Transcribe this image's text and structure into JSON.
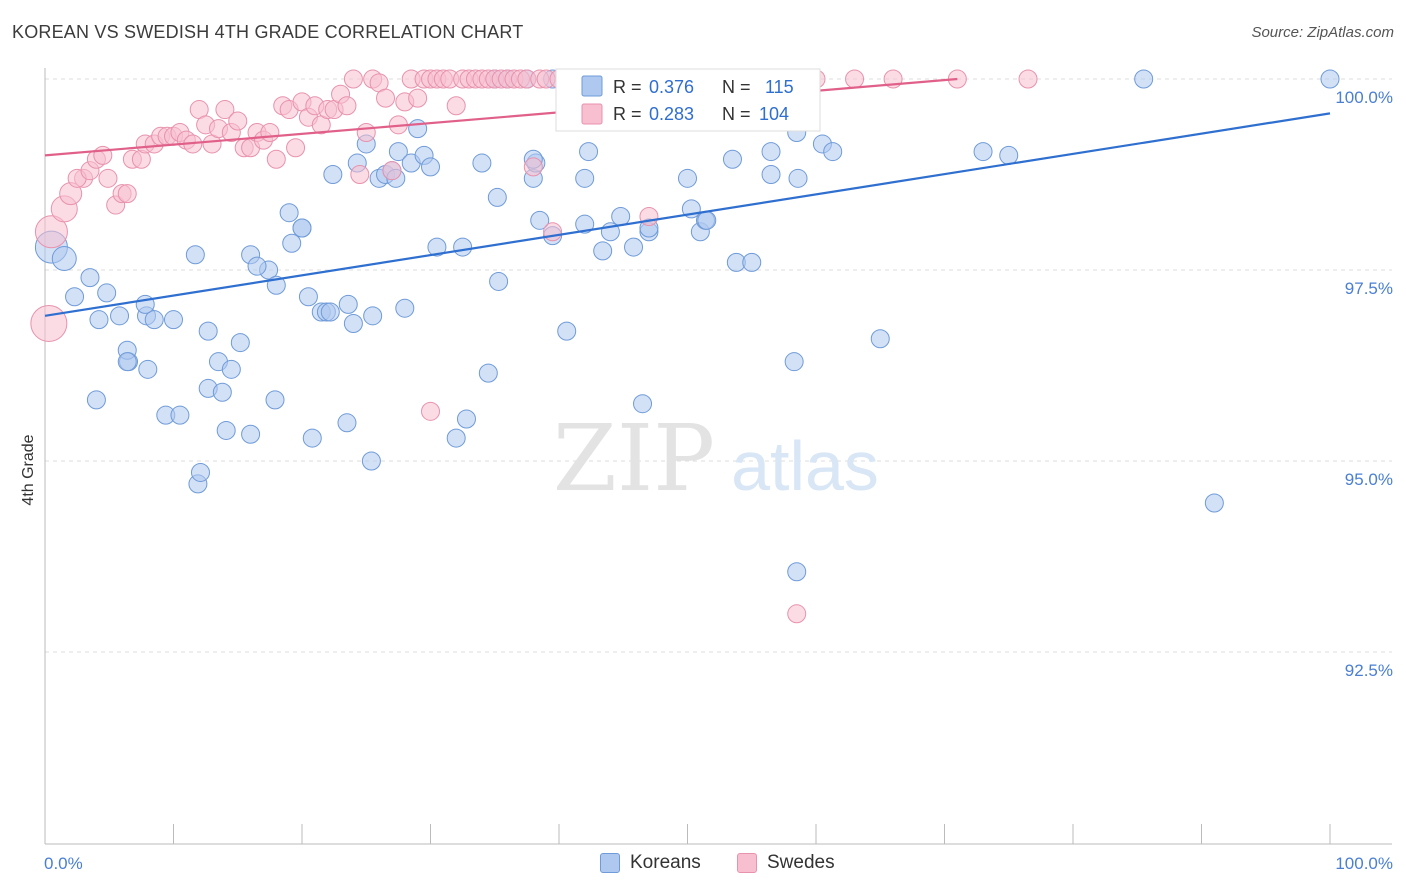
{
  "title": "KOREAN VS SWEDISH 4TH GRADE CORRELATION CHART",
  "source": "Source: ZipAtlas.com",
  "watermark": {
    "zip": "ZIP",
    "atlas": "atlas"
  },
  "legend_top": [
    {
      "r_label": "R =",
      "r_value": "0.376",
      "n_label": "N =",
      "n_value": "115"
    },
    {
      "r_label": "R =",
      "r_value": "0.283",
      "n_label": "N =",
      "n_value": "104"
    }
  ],
  "legend_bottom": {
    "koreans": "Koreans",
    "swedes": "Swedes"
  },
  "colors": {
    "korean_fill": "#aec8f0",
    "korean_stroke": "#6f9bd8",
    "korean_line": "#2f6fd0",
    "swede_fill": "#f7bfd0",
    "swede_stroke": "#e892ad",
    "swede_line": "#e0608a",
    "tick_label": "#4a7fd4",
    "grid": "#dddddd"
  },
  "chart_data": {
    "type": "scatter",
    "title": "KOREAN VS SWEDISH 4TH GRADE CORRELATION CHART",
    "xlabel": "",
    "ylabel": "4th Grade",
    "xlim": [
      0,
      100
    ],
    "ylim": [
      90.0,
      100.25
    ],
    "x_tick_labels": [
      "0.0%",
      "100.0%"
    ],
    "y_ticks": [
      92.5,
      95.0,
      97.5,
      100.0
    ],
    "y_tick_labels": [
      "92.5%",
      "95.0%",
      "97.5%",
      "100.0%"
    ],
    "grid": "horizontal dashed",
    "legend_position": "top-center",
    "series": [
      {
        "name": "Koreans",
        "R": 0.376,
        "N": 115,
        "trend": [
          [
            0,
            96.9
          ],
          [
            100,
            99.55
          ]
        ],
        "points": [
          [
            0.5,
            97.8,
            16
          ],
          [
            1.5,
            97.65,
            12
          ],
          [
            3.5,
            97.4,
            9
          ],
          [
            2.3,
            97.15,
            9
          ],
          [
            4.8,
            97.2,
            9
          ],
          [
            4.2,
            96.85,
            9
          ],
          [
            5.8,
            96.9,
            9
          ],
          [
            7.9,
            96.9,
            9
          ],
          [
            8.5,
            96.85,
            9
          ],
          [
            7.8,
            97.05,
            9
          ],
          [
            10.0,
            96.85,
            9
          ],
          [
            6.5,
            96.3,
            9
          ],
          [
            6.4,
            96.45,
            9
          ],
          [
            12.7,
            96.7,
            9
          ],
          [
            11.7,
            97.7,
            9
          ],
          [
            13.5,
            96.3,
            9
          ],
          [
            14.5,
            96.2,
            9
          ],
          [
            15.2,
            96.55,
            9
          ],
          [
            6.4,
            96.3,
            9
          ],
          [
            8.0,
            96.2,
            9
          ],
          [
            4.0,
            95.8,
            9
          ],
          [
            9.4,
            95.6,
            9
          ],
          [
            10.5,
            95.6,
            9
          ],
          [
            12.7,
            95.95,
            9
          ],
          [
            13.8,
            95.9,
            9
          ],
          [
            14.1,
            95.4,
            9
          ],
          [
            11.9,
            94.7,
            9
          ],
          [
            12.1,
            94.85,
            9
          ],
          [
            16.0,
            95.35,
            9
          ],
          [
            17.9,
            95.8,
            9
          ],
          [
            17.4,
            97.5,
            9
          ],
          [
            16.0,
            97.7,
            9
          ],
          [
            16.5,
            97.55,
            9
          ],
          [
            18.0,
            97.3,
            9
          ],
          [
            19.2,
            97.85,
            9
          ],
          [
            19.0,
            98.25,
            9
          ],
          [
            20.0,
            98.05,
            9
          ],
          [
            20.0,
            98.05,
            9
          ],
          [
            20.5,
            97.15,
            9
          ],
          [
            21.5,
            96.95,
            9
          ],
          [
            21.9,
            96.95,
            9
          ],
          [
            22.2,
            96.95,
            9
          ],
          [
            23.6,
            97.05,
            9
          ],
          [
            24.0,
            96.8,
            9
          ],
          [
            25.5,
            96.9,
            9
          ],
          [
            20.8,
            95.3,
            9
          ],
          [
            23.5,
            95.5,
            9
          ],
          [
            25.4,
            95.0,
            9
          ],
          [
            28.0,
            97.0,
            9
          ],
          [
            22.4,
            98.75,
            9
          ],
          [
            24.3,
            98.9,
            9
          ],
          [
            25.0,
            99.15,
            9
          ],
          [
            26.0,
            98.7,
            9
          ],
          [
            26.5,
            98.75,
            9
          ],
          [
            27.0,
            98.8,
            9
          ],
          [
            27.3,
            98.7,
            9
          ],
          [
            27.5,
            99.05,
            9
          ],
          [
            28.5,
            98.9,
            9
          ],
          [
            29.5,
            99.0,
            9
          ],
          [
            29.0,
            99.35,
            9
          ],
          [
            30.0,
            98.85,
            9
          ],
          [
            30.5,
            97.8,
            9
          ],
          [
            32.5,
            97.8,
            9
          ],
          [
            32.0,
            95.3,
            9
          ],
          [
            32.8,
            95.55,
            9
          ],
          [
            34.0,
            98.9,
            9
          ],
          [
            35.2,
            98.45,
            9
          ],
          [
            35.3,
            97.35,
            9
          ],
          [
            34.5,
            96.15,
            9
          ],
          [
            35.0,
            100.0,
            9
          ],
          [
            36.0,
            100.0,
            9
          ],
          [
            37.5,
            100.0,
            9
          ],
          [
            38.0,
            98.7,
            9
          ],
          [
            38.2,
            98.9,
            9
          ],
          [
            38.0,
            98.95,
            9
          ],
          [
            38.5,
            98.15,
            9
          ],
          [
            39.5,
            97.95,
            9
          ],
          [
            40.5,
            100.0,
            9
          ],
          [
            39.5,
            100.0,
            9
          ],
          [
            40.6,
            96.7,
            9
          ],
          [
            42.0,
            98.7,
            9
          ],
          [
            42.3,
            99.05,
            9
          ],
          [
            43.4,
            97.75,
            9
          ],
          [
            44.8,
            98.2,
            9
          ],
          [
            45.8,
            97.8,
            9
          ],
          [
            47.0,
            98.0,
            9
          ],
          [
            47.0,
            98.05,
            9
          ],
          [
            45.0,
            100.0,
            9
          ],
          [
            41.0,
            100.0,
            9
          ],
          [
            50.0,
            98.7,
            9
          ],
          [
            50.3,
            98.3,
            9
          ],
          [
            51.0,
            98.0,
            9
          ],
          [
            51.4,
            98.15,
            9
          ],
          [
            51.5,
            98.15,
            9
          ],
          [
            53.5,
            98.95,
            9
          ],
          [
            58.6,
            98.7,
            9
          ],
          [
            58.5,
            99.3,
            9
          ],
          [
            56.5,
            98.75,
            9
          ],
          [
            56.5,
            99.05,
            9
          ],
          [
            58.3,
            96.3,
            9
          ],
          [
            60.5,
            99.15,
            9
          ],
          [
            61.3,
            99.05,
            9
          ],
          [
            59.0,
            99.6,
            9
          ],
          [
            53.8,
            97.6,
            9
          ],
          [
            55.0,
            97.6,
            9
          ],
          [
            65.0,
            96.6,
            9
          ],
          [
            73.0,
            99.05,
            9
          ],
          [
            75.0,
            99.0,
            9
          ],
          [
            85.5,
            100.0,
            9
          ],
          [
            91.0,
            94.45,
            9
          ],
          [
            100.0,
            100.0,
            9
          ],
          [
            58.5,
            93.55,
            9
          ],
          [
            46.5,
            95.75,
            9
          ],
          [
            42.0,
            98.1,
            9
          ],
          [
            44.0,
            98.0,
            9
          ]
        ]
      },
      {
        "name": "Swedes",
        "R": 0.283,
        "N": 104,
        "trend": [
          [
            0,
            99.0
          ],
          [
            71,
            100.0
          ]
        ],
        "points": [
          [
            0.3,
            96.8,
            18
          ],
          [
            0.5,
            98.0,
            16
          ],
          [
            1.5,
            98.3,
            13
          ],
          [
            2.0,
            98.5,
            11
          ],
          [
            3.0,
            98.7,
            9
          ],
          [
            2.5,
            98.7,
            9
          ],
          [
            3.5,
            98.8,
            9
          ],
          [
            4.0,
            98.95,
            9
          ],
          [
            4.5,
            99.0,
            9
          ],
          [
            4.9,
            98.7,
            9
          ],
          [
            5.5,
            98.35,
            9
          ],
          [
            6.0,
            98.5,
            9
          ],
          [
            6.4,
            98.5,
            9
          ],
          [
            6.8,
            98.95,
            9
          ],
          [
            7.5,
            98.95,
            9
          ],
          [
            7.8,
            99.15,
            9
          ],
          [
            8.5,
            99.15,
            9
          ],
          [
            9.0,
            99.25,
            9
          ],
          [
            9.5,
            99.25,
            9
          ],
          [
            10.0,
            99.25,
            9
          ],
          [
            10.5,
            99.3,
            9
          ],
          [
            11.0,
            99.2,
            9
          ],
          [
            11.5,
            99.15,
            9
          ],
          [
            12.0,
            99.6,
            9
          ],
          [
            12.5,
            99.4,
            9
          ],
          [
            13.0,
            99.15,
            9
          ],
          [
            13.5,
            99.35,
            9
          ],
          [
            14.0,
            99.6,
            9
          ],
          [
            14.5,
            99.3,
            9
          ],
          [
            15.0,
            99.45,
            9
          ],
          [
            15.5,
            99.1,
            9
          ],
          [
            16.0,
            99.1,
            9
          ],
          [
            16.5,
            99.3,
            9
          ],
          [
            17.0,
            99.2,
            9
          ],
          [
            17.5,
            99.3,
            9
          ],
          [
            18.0,
            98.95,
            9
          ],
          [
            18.5,
            99.65,
            9
          ],
          [
            19.0,
            99.6,
            9
          ],
          [
            19.5,
            99.1,
            9
          ],
          [
            20.0,
            99.7,
            9
          ],
          [
            20.5,
            99.5,
            9
          ],
          [
            21.0,
            99.65,
            9
          ],
          [
            21.5,
            99.4,
            9
          ],
          [
            22.0,
            99.6,
            9
          ],
          [
            22.5,
            99.6,
            9
          ],
          [
            23.0,
            99.8,
            9
          ],
          [
            23.5,
            99.65,
            9
          ],
          [
            24.0,
            100.0,
            9
          ],
          [
            24.5,
            98.75,
            9
          ],
          [
            25.0,
            99.3,
            9
          ],
          [
            25.5,
            100.0,
            9
          ],
          [
            26.0,
            99.95,
            9
          ],
          [
            26.5,
            99.75,
            9
          ],
          [
            27.0,
            98.8,
            9
          ],
          [
            27.5,
            99.4,
            9
          ],
          [
            28.0,
            99.7,
            9
          ],
          [
            28.5,
            100.0,
            9
          ],
          [
            29.0,
            99.75,
            9
          ],
          [
            29.5,
            100.0,
            9
          ],
          [
            30.0,
            100.0,
            9
          ],
          [
            30.5,
            100.0,
            9
          ],
          [
            31.0,
            100.0,
            9
          ],
          [
            31.5,
            100.0,
            9
          ],
          [
            32.0,
            99.65,
            9
          ],
          [
            32.5,
            100.0,
            9
          ],
          [
            33.0,
            100.0,
            9
          ],
          [
            33.5,
            100.0,
            9
          ],
          [
            34.0,
            100.0,
            9
          ],
          [
            34.5,
            100.0,
            9
          ],
          [
            35.0,
            100.0,
            9
          ],
          [
            35.5,
            100.0,
            9
          ],
          [
            36.0,
            100.0,
            9
          ],
          [
            36.5,
            100.0,
            9
          ],
          [
            37.0,
            100.0,
            9
          ],
          [
            37.5,
            100.0,
            9
          ],
          [
            38.0,
            98.85,
            9
          ],
          [
            38.5,
            100.0,
            9
          ],
          [
            39.0,
            100.0,
            9
          ],
          [
            39.5,
            98.0,
            9
          ],
          [
            40.0,
            100.0,
            9
          ],
          [
            40.5,
            100.0,
            9
          ],
          [
            41.0,
            100.0,
            9
          ],
          [
            41.5,
            100.0,
            9
          ],
          [
            42.0,
            100.0,
            9
          ],
          [
            43.0,
            100.0,
            9
          ],
          [
            44.0,
            100.0,
            9
          ],
          [
            45.0,
            100.0,
            9
          ],
          [
            46.0,
            100.0,
            9
          ],
          [
            47.0,
            98.2,
            9
          ],
          [
            48.0,
            100.0,
            9
          ],
          [
            49.0,
            100.0,
            9
          ],
          [
            50.0,
            100.0,
            9
          ],
          [
            51.0,
            100.0,
            9
          ],
          [
            52.0,
            100.0,
            9
          ],
          [
            54.0,
            100.0,
            9
          ],
          [
            55.0,
            100.0,
            9
          ],
          [
            56.0,
            100.0,
            9
          ],
          [
            58.0,
            100.0,
            9
          ],
          [
            60.0,
            100.0,
            9
          ],
          [
            63.0,
            100.0,
            9
          ],
          [
            66.0,
            100.0,
            9
          ],
          [
            71.0,
            100.0,
            9
          ],
          [
            76.5,
            100.0,
            9
          ],
          [
            30.0,
            95.65,
            9
          ]
        ],
        "outlier": [
          58.5,
          93.0,
          9
        ]
      }
    ]
  }
}
